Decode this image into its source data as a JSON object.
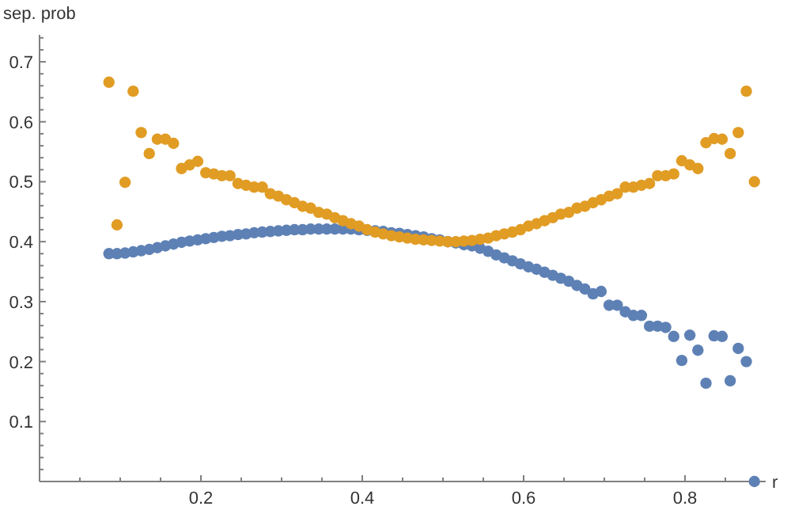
{
  "chart_data": {
    "type": "scatter",
    "xlabel": "r",
    "ylabel": "sep. prob",
    "marker": "circle",
    "grid": false,
    "xlim": [
      0,
      0.9
    ],
    "ylim": [
      0,
      0.745
    ],
    "xticks": [
      {
        "value": 0.05,
        "label": null
      },
      {
        "value": 0.1,
        "label": null
      },
      {
        "value": 0.15,
        "label": null
      },
      0.2,
      {
        "value": 0.25,
        "label": null
      },
      {
        "value": 0.3,
        "label": null
      },
      {
        "value": 0.35,
        "label": null
      },
      0.4,
      {
        "value": 0.45,
        "label": null
      },
      {
        "value": 0.5,
        "label": null
      },
      {
        "value": 0.55,
        "label": null
      },
      0.6,
      {
        "value": 0.65,
        "label": null
      },
      {
        "value": 0.7,
        "label": null
      },
      {
        "value": 0.75,
        "label": null
      },
      0.8,
      {
        "value": 0.85,
        "label": null
      }
    ],
    "yticks": [
      {
        "value": 0.02,
        "label": null
      },
      {
        "value": 0.04,
        "label": null
      },
      {
        "value": 0.06,
        "label": null
      },
      {
        "value": 0.08,
        "label": null
      },
      0.1,
      {
        "value": 0.12,
        "label": null
      },
      {
        "value": 0.14,
        "label": null
      },
      {
        "value": 0.16,
        "label": null
      },
      {
        "value": 0.18,
        "label": null
      },
      0.2,
      {
        "value": 0.22,
        "label": null
      },
      {
        "value": 0.24,
        "label": null
      },
      {
        "value": 0.26,
        "label": null
      },
      {
        "value": 0.28,
        "label": null
      },
      0.3,
      {
        "value": 0.32,
        "label": null
      },
      {
        "value": 0.34,
        "label": null
      },
      {
        "value": 0.36,
        "label": null
      },
      {
        "value": 0.38,
        "label": null
      },
      0.4,
      {
        "value": 0.42,
        "label": null
      },
      {
        "value": 0.44,
        "label": null
      },
      {
        "value": 0.46,
        "label": null
      },
      {
        "value": 0.48,
        "label": null
      },
      0.5,
      {
        "value": 0.52,
        "label": null
      },
      {
        "value": 0.54,
        "label": null
      },
      {
        "value": 0.56,
        "label": null
      },
      {
        "value": 0.58,
        "label": null
      },
      0.6,
      {
        "value": 0.62,
        "label": null
      },
      {
        "value": 0.64,
        "label": null
      },
      {
        "value": 0.66,
        "label": null
      },
      {
        "value": 0.68,
        "label": null
      },
      0.7,
      {
        "value": 0.72,
        "label": null
      },
      {
        "value": 0.74,
        "label": null
      }
    ],
    "x": [
      0.086,
      0.096,
      0.106,
      0.116,
      0.126,
      0.136,
      0.146,
      0.156,
      0.166,
      0.176,
      0.186,
      0.196,
      0.206,
      0.216,
      0.226,
      0.236,
      0.246,
      0.256,
      0.266,
      0.276,
      0.286,
      0.296,
      0.306,
      0.316,
      0.326,
      0.336,
      0.346,
      0.356,
      0.366,
      0.376,
      0.386,
      0.396,
      0.406,
      0.416,
      0.426,
      0.436,
      0.446,
      0.456,
      0.466,
      0.476,
      0.486,
      0.496,
      0.506,
      0.516,
      0.526,
      0.536,
      0.546,
      0.556,
      0.566,
      0.576,
      0.586,
      0.596,
      0.606,
      0.616,
      0.626,
      0.636,
      0.646,
      0.656,
      0.666,
      0.676,
      0.686,
      0.696,
      0.706,
      0.716,
      0.726,
      0.736,
      0.746,
      0.756,
      0.766,
      0.776,
      0.786,
      0.796,
      0.806,
      0.816,
      0.826,
      0.836,
      0.846,
      0.856,
      0.866,
      0.876,
      0.886
    ],
    "series": [
      {
        "color": "#5e81b5",
        "values": [
          0.38,
          0.38,
          0.381,
          0.383,
          0.385,
          0.387,
          0.39,
          0.393,
          0.396,
          0.399,
          0.401,
          0.403,
          0.405,
          0.407,
          0.409,
          0.41,
          0.412,
          0.413,
          0.415,
          0.416,
          0.417,
          0.418,
          0.419,
          0.42,
          0.42,
          0.421,
          0.421,
          0.421,
          0.421,
          0.421,
          0.421,
          0.42,
          0.419,
          0.418,
          0.417,
          0.415,
          0.414,
          0.412,
          0.41,
          0.408,
          0.405,
          0.403,
          0.4,
          0.398,
          0.395,
          0.393,
          0.389,
          0.384,
          0.378,
          0.373,
          0.368,
          0.363,
          0.358,
          0.354,
          0.349,
          0.344,
          0.339,
          0.334,
          0.327,
          0.321,
          0.313,
          0.317,
          0.294,
          0.294,
          0.283,
          0.277,
          0.277,
          0.259,
          0.259,
          0.257,
          0.242,
          0.202,
          0.244,
          0.219,
          0.164,
          0.243,
          0.242,
          0.168,
          0.222,
          0.2,
          0.0
        ]
      },
      {
        "color": "#e19c24",
        "values": [
          0.666,
          0.428,
          0.499,
          0.651,
          0.582,
          0.547,
          0.571,
          0.571,
          0.564,
          0.522,
          0.528,
          0.534,
          0.515,
          0.513,
          0.51,
          0.51,
          0.497,
          0.494,
          0.491,
          0.491,
          0.48,
          0.476,
          0.47,
          0.465,
          0.459,
          0.456,
          0.449,
          0.446,
          0.44,
          0.435,
          0.43,
          0.426,
          0.42,
          0.416,
          0.413,
          0.41,
          0.408,
          0.406,
          0.404,
          0.403,
          0.402,
          0.401,
          0.4,
          0.4,
          0.401,
          0.402,
          0.404,
          0.406,
          0.41,
          0.413,
          0.416,
          0.42,
          0.426,
          0.43,
          0.435,
          0.44,
          0.446,
          0.449,
          0.456,
          0.459,
          0.465,
          0.47,
          0.476,
          0.48,
          0.491,
          0.491,
          0.494,
          0.497,
          0.51,
          0.51,
          0.513,
          0.535,
          0.528,
          0.522,
          0.565,
          0.572,
          0.571,
          0.547,
          0.582,
          0.651,
          0.5
        ]
      }
    ]
  }
}
